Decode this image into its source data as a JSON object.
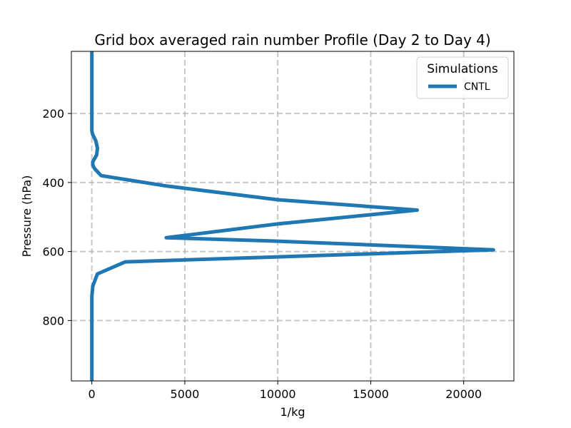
{
  "chart_data": {
    "type": "line",
    "title": "Grid box averaged rain number Profile (Day 2 to Day 4)",
    "xlabel": "1/kg",
    "ylabel": "Pressure (hPa)",
    "xlim": [
      -1100,
      22700
    ],
    "ylim": [
      975,
      20
    ],
    "y_inverted": true,
    "grid": true,
    "x_ticks": [
      0,
      5000,
      10000,
      15000,
      20000
    ],
    "y_ticks": [
      200,
      400,
      600,
      800
    ],
    "legend": {
      "title": "Simulations",
      "placement": "top-right"
    },
    "series": [
      {
        "name": "CNTL",
        "color": "#1f77b4",
        "x": [
          0,
          0,
          0,
          0,
          0,
          0,
          0,
          40,
          220,
          300,
          260,
          50,
          50,
          150,
          500,
          4000,
          10000,
          17500,
          10000,
          4000,
          10000,
          21600,
          1800,
          300,
          50,
          0,
          0,
          0,
          0,
          0
        ],
        "y": [
          20,
          50,
          100,
          150,
          200,
          230,
          250,
          260,
          280,
          300,
          320,
          340,
          350,
          360,
          380,
          410,
          450,
          480,
          520,
          560,
          570,
          595,
          630,
          665,
          700,
          730,
          800,
          850,
          900,
          975
        ]
      }
    ]
  }
}
